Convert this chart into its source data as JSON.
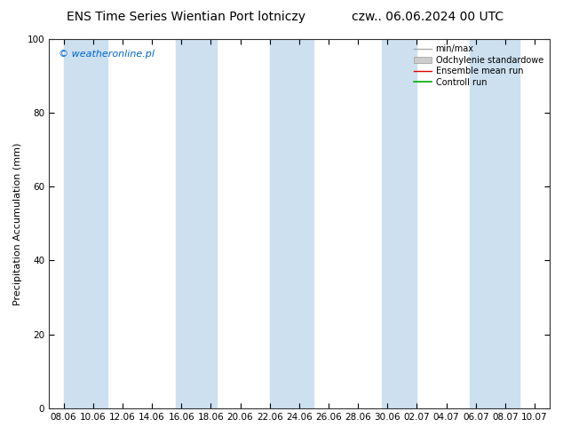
{
  "title_left": "ENS Time Series Wientian Port lotniczy",
  "title_right": "czw.. 06.06.2024 00 UTC",
  "ylabel": "Precipitation Accumulation (mm)",
  "ylim": [
    0,
    100
  ],
  "yticks": [
    0,
    20,
    40,
    60,
    80,
    100
  ],
  "xtick_labels": [
    "08.06",
    "10.06",
    "12.06",
    "14.06",
    "16.06",
    "18.06",
    "20.06",
    "22.06",
    "24.06",
    "26.06",
    "28.06",
    "30.06",
    "02.07",
    "04.07",
    "06.07",
    "08.07",
    "10.07"
  ],
  "watermark": "© weatheronline.pl",
  "watermark_color": "#0066cc",
  "background_color": "#ffffff",
  "plot_bg_color": "#ffffff",
  "band_color": "#cce0f0",
  "band_indices": [
    0,
    1,
    4,
    7,
    8,
    11,
    14,
    15
  ],
  "legend_entries": [
    {
      "label": "min/max",
      "color": "#aaaaaa",
      "lw": 1.0,
      "style": "line"
    },
    {
      "label": "Odchylenie standardowe",
      "color": "#cccccc",
      "style": "fill"
    },
    {
      "label": "Ensemble mean run",
      "color": "#dd0000",
      "lw": 1.0,
      "style": "line"
    },
    {
      "label": "Controll run",
      "color": "#00aa00",
      "lw": 1.2,
      "style": "line"
    }
  ],
  "title_fontsize": 10,
  "axis_fontsize": 8,
  "tick_fontsize": 7.5
}
